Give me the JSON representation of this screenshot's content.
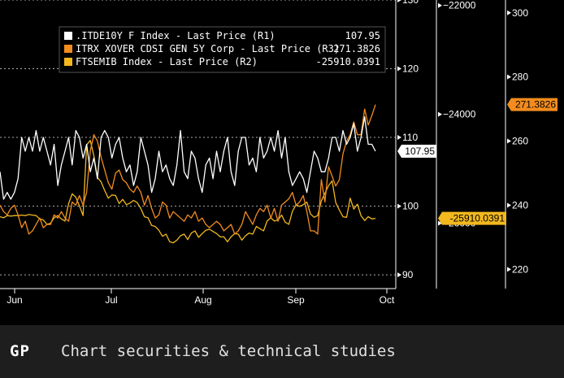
{
  "chart_data": {
    "type": "line",
    "xlabels": [
      "Jun",
      "Jul",
      "Aug",
      "Sep",
      "Oct"
    ],
    "legend": {
      "placement": "top-left"
    },
    "axes": {
      "R1": {
        "ticks": [
          90,
          100,
          110,
          120,
          130
        ],
        "range": [
          88,
          130
        ]
      },
      "R2": {
        "ticks": [
          -26000,
          -24000,
          -22000
        ],
        "range": [
          -27200,
          -21900
        ]
      },
      "R3": {
        "ticks": [
          220,
          240,
          260,
          280,
          300
        ],
        "range": [
          214,
          304
        ]
      }
    },
    "series": [
      {
        "name": ".ITDE10Y F Index - Last Price (R1)",
        "axis": "R1",
        "color": "#ffffff",
        "last_label": "107.95",
        "values": [
          105,
          101,
          102,
          101,
          102,
          104,
          110,
          108,
          110,
          108,
          111,
          108,
          110,
          108,
          106,
          109,
          103,
          106,
          108,
          110,
          106,
          111,
          110,
          107,
          109,
          105,
          107,
          104,
          110,
          111,
          110,
          107,
          109,
          110,
          107,
          105,
          106,
          103,
          105,
          110,
          108,
          106,
          102,
          104,
          108,
          105,
          106,
          104,
          103,
          106,
          111,
          105,
          104,
          108,
          107,
          104,
          102,
          106,
          107,
          104,
          108,
          105,
          108,
          110,
          105,
          103,
          108,
          110,
          110,
          106,
          107,
          105,
          110,
          107,
          108,
          110,
          108,
          111,
          107,
          110,
          105,
          103,
          104,
          105,
          104,
          102,
          105,
          108,
          107,
          105,
          105,
          107,
          110,
          110,
          108,
          111,
          109,
          110,
          112,
          108,
          110,
          113,
          109,
          109,
          108
        ]
      },
      {
        "name": "ITRX XOVER CDSI GEN 5Y Corp - Last Price (R3)",
        "axis": "R3",
        "color": "#f28c1e",
        "last_label": "271.3826",
        "values": [
          240,
          238,
          237,
          239,
          240,
          237,
          233,
          235,
          231,
          232,
          234,
          236,
          233,
          234,
          234,
          237,
          236,
          238,
          236,
          235,
          241,
          240,
          243,
          240,
          244,
          257,
          262,
          260,
          255,
          251,
          247,
          245,
          250,
          251,
          248,
          247,
          245,
          244,
          246,
          244,
          240,
          243,
          239,
          236,
          237,
          241,
          240,
          236,
          238,
          237,
          236,
          235,
          237,
          236,
          238,
          235,
          236,
          234,
          233,
          234,
          235,
          234,
          232,
          233,
          234,
          231,
          232,
          234,
          238,
          236,
          234,
          237,
          239,
          238,
          240,
          236,
          239,
          235,
          240,
          241,
          242,
          244,
          240,
          241,
          243,
          238,
          232,
          232,
          231,
          248,
          241,
          252,
          249,
          246,
          248,
          256,
          260,
          262,
          266,
          262,
          262,
          270,
          265,
          268,
          271.3826
        ]
      },
      {
        "name": "FTSEMIB Index - Last Price (R2)",
        "axis": "R2",
        "color": "#f2b81e",
        "last_label": "-25910.0391",
        "values": [
          -25880,
          -25900,
          -25860,
          -25870,
          -25860,
          -25860,
          -25850,
          -25860,
          -25840,
          -25850,
          -25860,
          -25920,
          -25940,
          -26020,
          -26000,
          -25900,
          -25860,
          -25920,
          -25960,
          -25640,
          -25460,
          -25520,
          -25680,
          -25860,
          -24560,
          -24480,
          -24760,
          -25160,
          -25240,
          -25400,
          -25540,
          -25480,
          -25490,
          -25640,
          -25560,
          -25660,
          -25630,
          -25580,
          -25620,
          -25730,
          -25880,
          -25900,
          -26040,
          -26060,
          -26130,
          -26240,
          -26200,
          -26340,
          -26360,
          -26310,
          -26230,
          -26200,
          -26300,
          -26180,
          -26140,
          -26260,
          -26190,
          -26130,
          -26110,
          -26150,
          -26190,
          -26250,
          -26250,
          -26340,
          -26250,
          -26190,
          -26200,
          -26310,
          -26230,
          -26180,
          -26200,
          -26060,
          -26100,
          -26140,
          -25960,
          -25900,
          -25960,
          -25940,
          -25850,
          -25980,
          -26020,
          -25780,
          -25660,
          -25690,
          -25660,
          -25610,
          -25830,
          -25890,
          -25860,
          -25590,
          -25450,
          -25310,
          -25220,
          -25620,
          -25760,
          -25880,
          -25890,
          -25540,
          -25740,
          -25650,
          -25860,
          -25950,
          -25880,
          -25920,
          -25910.0391
        ]
      }
    ]
  },
  "footer": {
    "code": "GP",
    "title": "Chart securities & technical studies"
  }
}
